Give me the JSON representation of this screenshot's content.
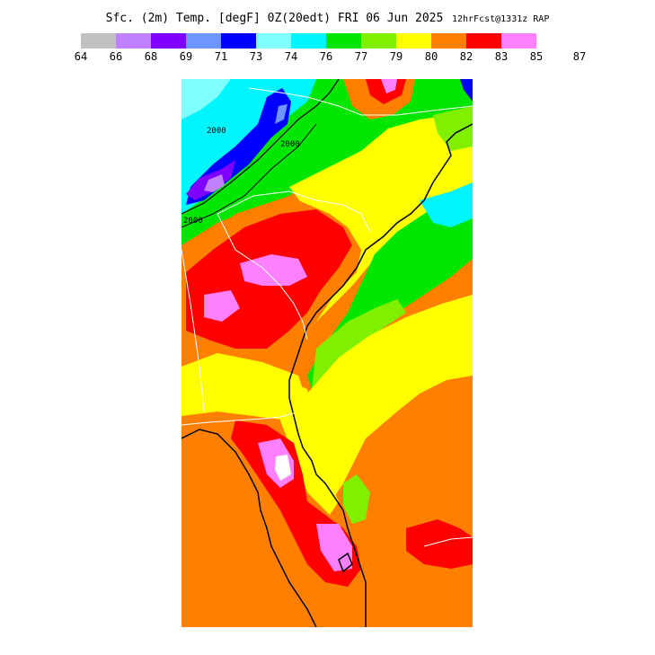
{
  "title": {
    "main": "Sfc. (2m) Temp. [degF] 0Z(20edt) FRI 06 Jun 2025",
    "run": "12hrFcst@1331z RAP"
  },
  "legend": {
    "colors": [
      "#c0c0c0",
      "#c080ff",
      "#8000ff",
      "#6e96ff",
      "#0000ff",
      "#80ffff",
      "#00f5ff",
      "#00e600",
      "#80f000",
      "#ffff00",
      "#ff8000",
      "#ff0000",
      "#ff80ff"
    ],
    "ticks": [
      "64",
      "66",
      "68",
      "69",
      "71",
      "73",
      "74",
      "76",
      "77",
      "79",
      "80",
      "82",
      "83",
      "85",
      "87"
    ]
  },
  "map": {
    "contour_labels": [
      "2000",
      "2000",
      "2000"
    ]
  }
}
